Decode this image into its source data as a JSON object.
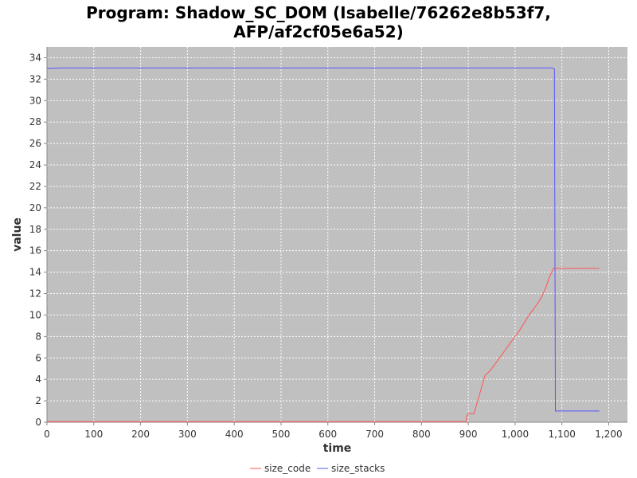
{
  "chart_data": {
    "type": "line",
    "title_line1": "Program: Shadow_SC_DOM (Isabelle/76262e8b53f7,",
    "title_line2": "AFP/af2cf05e6a52)",
    "xlabel": "time",
    "ylabel": "value",
    "xlim": [
      0,
      1240
    ],
    "ylim": [
      0,
      35
    ],
    "x_ticks": [
      0,
      100,
      200,
      300,
      400,
      500,
      600,
      700,
      800,
      900,
      1000,
      1100,
      1200
    ],
    "x_tick_labels": [
      "0",
      "100",
      "200",
      "300",
      "400",
      "500",
      "600",
      "700",
      "800",
      "900",
      "1,000",
      "1,100",
      "1,200"
    ],
    "y_ticks": [
      0,
      2,
      4,
      6,
      8,
      10,
      12,
      14,
      16,
      18,
      20,
      22,
      24,
      26,
      28,
      30,
      32,
      34
    ],
    "grid": true,
    "legend_position": "bottom",
    "plot_background": "#c0c0c0",
    "series": [
      {
        "name": "size_code",
        "color": "#ff5555",
        "points": [
          [
            0,
            0.05
          ],
          [
            895,
            0.05
          ],
          [
            897,
            0.6
          ],
          [
            900,
            0.8
          ],
          [
            912,
            0.8
          ],
          [
            920,
            2.0
          ],
          [
            928,
            3.2
          ],
          [
            936,
            4.4
          ],
          [
            942,
            4.6
          ],
          [
            950,
            5.0
          ],
          [
            960,
            5.6
          ],
          [
            970,
            6.2
          ],
          [
            980,
            6.8
          ],
          [
            990,
            7.4
          ],
          [
            1000,
            8.0
          ],
          [
            1010,
            8.6
          ],
          [
            1020,
            9.3
          ],
          [
            1030,
            10.0
          ],
          [
            1040,
            10.6
          ],
          [
            1050,
            11.2
          ],
          [
            1058,
            11.8
          ],
          [
            1066,
            12.6
          ],
          [
            1074,
            13.6
          ],
          [
            1082,
            14.35
          ],
          [
            1180,
            14.35
          ]
        ]
      },
      {
        "name": "size_stacks",
        "color": "#5555ff",
        "points": [
          [
            0,
            33.0
          ],
          [
            30,
            33.05
          ],
          [
            1080,
            33.05
          ],
          [
            1084,
            32.95
          ],
          [
            1086,
            1.05
          ],
          [
            1180,
            1.05
          ]
        ]
      }
    ]
  }
}
